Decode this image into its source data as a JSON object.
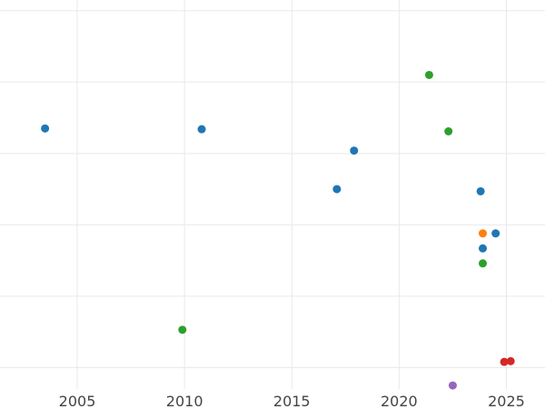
{
  "chart_data": {
    "type": "scatter",
    "title": "",
    "xlabel": "",
    "ylabel": "",
    "xlim": [
      2001.4,
      2026.8
    ],
    "ylim": [
      -0.05,
      5.4
    ],
    "x_ticks": [
      2005,
      2010,
      2015,
      2020,
      2025
    ],
    "x_tick_labels": [
      "2005",
      "2010",
      "2015",
      "2020",
      "2025"
    ],
    "y_gridlines": [
      0.25,
      1.25,
      2.25,
      3.25,
      4.25,
      5.25
    ],
    "grid": true,
    "legend": "none",
    "series": [
      {
        "color": "#1f77b4",
        "points": [
          {
            "x": 2003.5,
            "y": 3.6
          },
          {
            "x": 2010.8,
            "y": 3.59
          },
          {
            "x": 2017.9,
            "y": 3.29
          },
          {
            "x": 2017.1,
            "y": 2.75
          },
          {
            "x": 2023.8,
            "y": 2.72
          },
          {
            "x": 2024.5,
            "y": 2.13
          },
          {
            "x": 2023.9,
            "y": 1.92
          }
        ]
      },
      {
        "color": "#2ca02c",
        "points": [
          {
            "x": 2021.4,
            "y": 4.35
          },
          {
            "x": 2022.3,
            "y": 3.56
          },
          {
            "x": 2023.9,
            "y": 1.71
          },
          {
            "x": 2009.9,
            "y": 0.78
          }
        ]
      },
      {
        "color": "#ff7f0e",
        "points": [
          {
            "x": 2023.9,
            "y": 2.13
          }
        ]
      },
      {
        "color": "#d62728",
        "points": [
          {
            "x": 2024.9,
            "y": 0.33
          },
          {
            "x": 2025.2,
            "y": 0.34
          }
        ]
      },
      {
        "color": "#9467bd",
        "points": [
          {
            "x": 2022.5,
            "y": 0.0
          }
        ]
      }
    ]
  }
}
